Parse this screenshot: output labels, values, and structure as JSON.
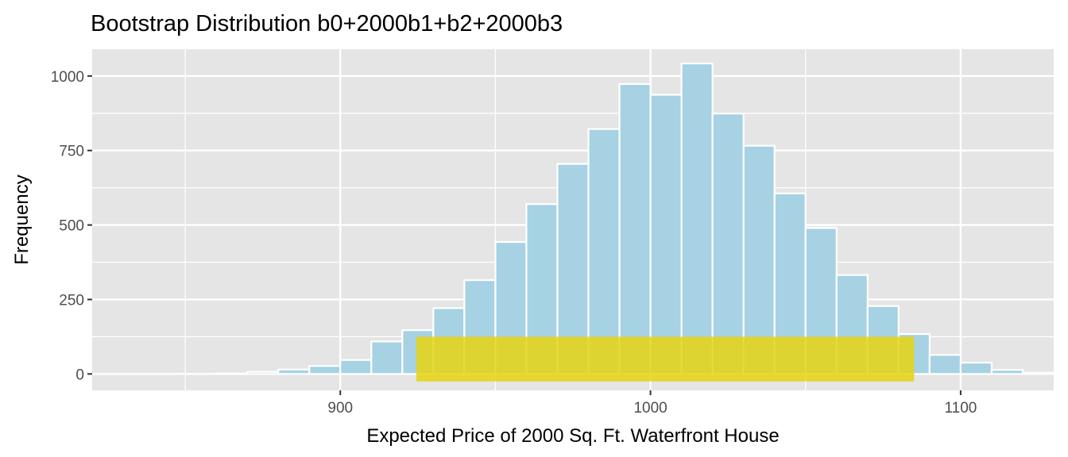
{
  "chart_data": {
    "type": "bar",
    "title": "Bootstrap Distribution b0+2000b1+b2+2000b3",
    "xlabel": "Expected Price of 2000 Sq. Ft. Waterfront House",
    "ylabel": "Frequency",
    "xlim": [
      820,
      1130
    ],
    "ylim": [
      -55,
      1090
    ],
    "x_ticks": [
      900,
      1000,
      1100
    ],
    "y_ticks": [
      0,
      250,
      500,
      750,
      1000
    ],
    "grid": true,
    "bin_width": 10,
    "bins": [
      {
        "x0": 860,
        "x1": 870,
        "value": 2
      },
      {
        "x0": 870,
        "x1": 880,
        "value": 7
      },
      {
        "x0": 880,
        "x1": 890,
        "value": 15
      },
      {
        "x0": 890,
        "x1": 900,
        "value": 27
      },
      {
        "x0": 900,
        "x1": 910,
        "value": 47
      },
      {
        "x0": 910,
        "x1": 920,
        "value": 109
      },
      {
        "x0": 920,
        "x1": 930,
        "value": 147
      },
      {
        "x0": 930,
        "x1": 940,
        "value": 221
      },
      {
        "x0": 940,
        "x1": 950,
        "value": 315
      },
      {
        "x0": 950,
        "x1": 960,
        "value": 443
      },
      {
        "x0": 960,
        "x1": 970,
        "value": 570
      },
      {
        "x0": 970,
        "x1": 980,
        "value": 705
      },
      {
        "x0": 980,
        "x1": 990,
        "value": 822
      },
      {
        "x0": 990,
        "x1": 1000,
        "value": 973
      },
      {
        "x0": 1000,
        "x1": 1010,
        "value": 937
      },
      {
        "x0": 1010,
        "x1": 1020,
        "value": 1042
      },
      {
        "x0": 1020,
        "x1": 1030,
        "value": 874
      },
      {
        "x0": 1030,
        "x1": 1040,
        "value": 766
      },
      {
        "x0": 1040,
        "x1": 1050,
        "value": 606
      },
      {
        "x0": 1050,
        "x1": 1060,
        "value": 490
      },
      {
        "x0": 1060,
        "x1": 1070,
        "value": 332
      },
      {
        "x0": 1070,
        "x1": 1080,
        "value": 228
      },
      {
        "x0": 1080,
        "x1": 1090,
        "value": 134
      },
      {
        "x0": 1090,
        "x1": 1100,
        "value": 64
      },
      {
        "x0": 1100,
        "x1": 1110,
        "value": 38
      },
      {
        "x0": 1110,
        "x1": 1120,
        "value": 14
      },
      {
        "x0": 1120,
        "x1": 1130,
        "value": 4
      }
    ],
    "highlight_interval": {
      "x0": 924.5,
      "x1": 1085,
      "y0": -25,
      "y1": 125
    },
    "colors": {
      "panel": "#e5e5e5",
      "grid": "#ffffff",
      "bar_fill": "#a6d2e3",
      "bar_outline": "#ffffff",
      "interval_fill": "#e6d312",
      "interval_opacity": 0.85,
      "tick_text": "#4d4d4d",
      "tick_mark": "#333333"
    }
  }
}
